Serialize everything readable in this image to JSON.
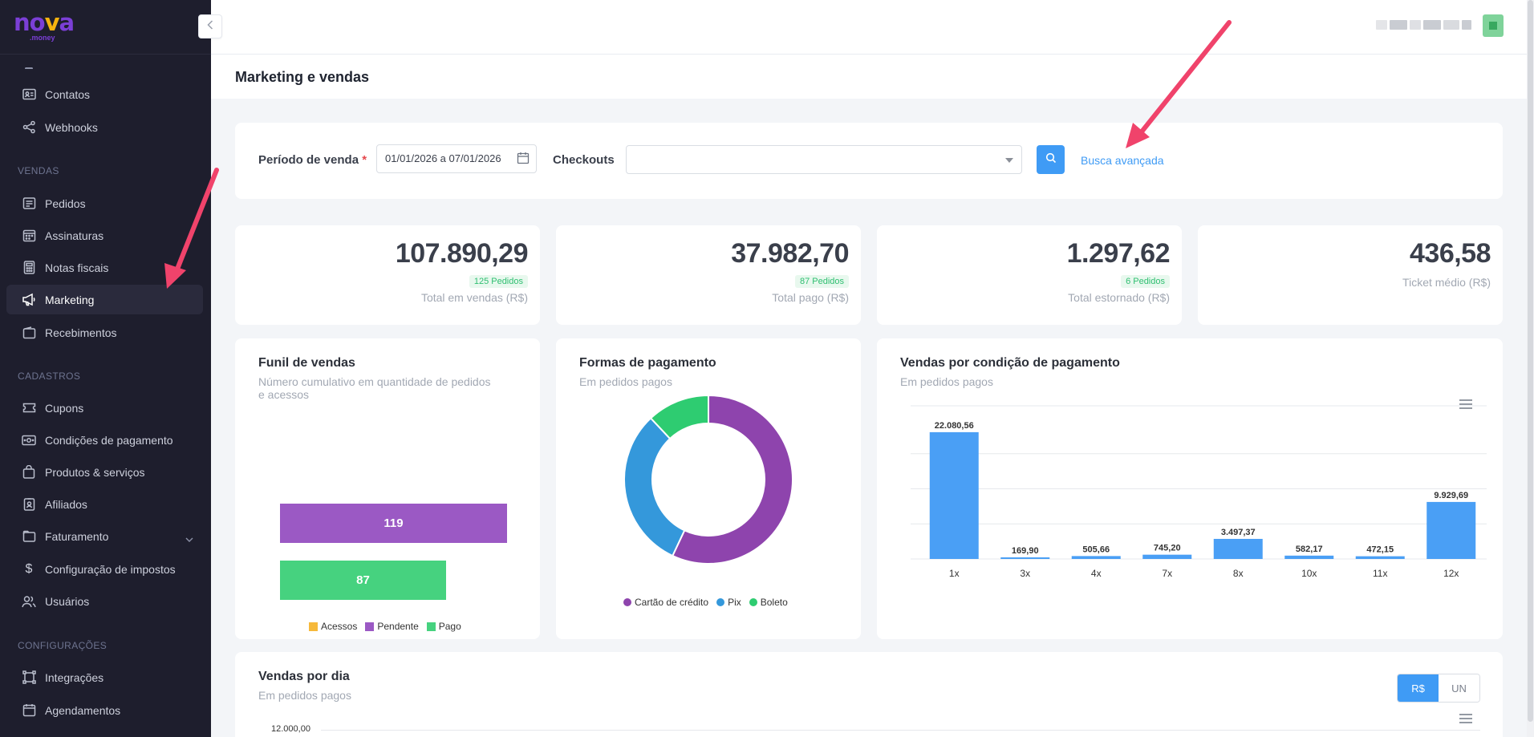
{
  "brand": {
    "name_pre": "no",
    "name_accent": "v",
    "name_post": "a",
    "sub": ".money"
  },
  "sidebar": {
    "items_top": [
      {
        "label": "Contatos",
        "icon": "contact-card-icon"
      },
      {
        "label": "Webhooks",
        "icon": "share-icon"
      }
    ],
    "sections": [
      {
        "title": "VENDAS",
        "items": [
          {
            "label": "Pedidos",
            "icon": "receipt-icon"
          },
          {
            "label": "Assinaturas",
            "icon": "calendar-grid-icon"
          },
          {
            "label": "Notas fiscais",
            "icon": "calculator-icon"
          },
          {
            "label": "Marketing",
            "icon": "megaphone-icon",
            "active": true
          },
          {
            "label": "Recebimentos",
            "icon": "wallet-icon"
          }
        ]
      },
      {
        "title": "CADASTROS",
        "items": [
          {
            "label": "Cupons",
            "icon": "ticket-icon"
          },
          {
            "label": "Condições de pagamento",
            "icon": "money-icon"
          },
          {
            "label": "Produtos & serviços",
            "icon": "shopping-bag-icon"
          },
          {
            "label": "Afiliados",
            "icon": "id-badge-icon"
          },
          {
            "label": "Faturamento",
            "icon": "folder-icon",
            "expandable": true
          },
          {
            "label": "Configuração de impostos",
            "icon": "dollar-icon"
          },
          {
            "label": "Usuários",
            "icon": "users-icon"
          }
        ]
      },
      {
        "title": "CONFIGURAÇÕES",
        "items": [
          {
            "label": "Integrações",
            "icon": "integration-icon"
          },
          {
            "label": "Agendamentos",
            "icon": "schedule-icon"
          }
        ]
      }
    ]
  },
  "page": {
    "title": "Marketing e vendas"
  },
  "filters": {
    "period_label": "Período de venda",
    "required_mark": "*",
    "period_value": "01/01/2026 a 07/01/2026",
    "checkouts_label": "Checkouts",
    "checkouts_value": "",
    "advanced_link": "Busca avançada"
  },
  "kpis": [
    {
      "value": "107.890,29",
      "badge": "125 Pedidos",
      "label": "Total em vendas (R$)"
    },
    {
      "value": "37.982,70",
      "badge": "87 Pedidos",
      "label": "Total pago (R$)"
    },
    {
      "value": "1.297,62",
      "badge": "6 Pedidos",
      "label": "Total estornado (R$)"
    },
    {
      "value": "436,58",
      "badge": "",
      "label": "Ticket médio (R$)"
    }
  ],
  "funnel": {
    "title": "Funil de vendas",
    "subtitle_line1": "Número cumulativo em quantidade de pedidos",
    "subtitle_line2": "e acessos",
    "bars": [
      {
        "label": "119",
        "value": 119,
        "color": "#9b59c4"
      },
      {
        "label": "87",
        "value": 87,
        "color": "#46d27f"
      }
    ],
    "legend": [
      {
        "label": "Acessos",
        "color": "#f6b93b"
      },
      {
        "label": "Pendente",
        "color": "#9b59c4"
      },
      {
        "label": "Pago",
        "color": "#46d27f"
      }
    ]
  },
  "payments": {
    "title": "Formas de pagamento",
    "subtitle": "Em pedidos pagos",
    "legend": [
      {
        "label": "Cartão de crédito",
        "color": "#8e44ad"
      },
      {
        "label": "Pix",
        "color": "#3498db"
      },
      {
        "label": "Boleto",
        "color": "#2ecc71"
      }
    ]
  },
  "condition": {
    "title": "Vendas por condição de pagamento",
    "subtitle": "Em pedidos pagos"
  },
  "daily": {
    "title": "Vendas por dia",
    "subtitle": "Em pedidos pagos",
    "toggle_on": "R$",
    "toggle_off": "UN",
    "y_tick": "12.000,00"
  },
  "chart_data": [
    {
      "type": "pie",
      "title": "Formas de pagamento",
      "categories": [
        "Cartão de crédito",
        "Pix",
        "Boleto"
      ],
      "values": [
        57,
        31,
        12
      ],
      "colors": [
        "#8e44ad",
        "#3498db",
        "#2ecc71"
      ]
    },
    {
      "type": "bar",
      "title": "Vendas por condição de pagamento",
      "categories": [
        "1x",
        "3x",
        "4x",
        "7x",
        "8x",
        "10x",
        "11x",
        "12x"
      ],
      "values": [
        22080.56,
        169.9,
        505.66,
        745.2,
        3497.37,
        582.17,
        472.15,
        9929.69
      ],
      "value_labels": [
        "22.080,56",
        "169,90",
        "505,66",
        "745,20",
        "3.497,37",
        "582,17",
        "472,15",
        "9.929,69"
      ],
      "ylim": [
        0,
        25000
      ],
      "color": "#4a9ff5"
    }
  ]
}
